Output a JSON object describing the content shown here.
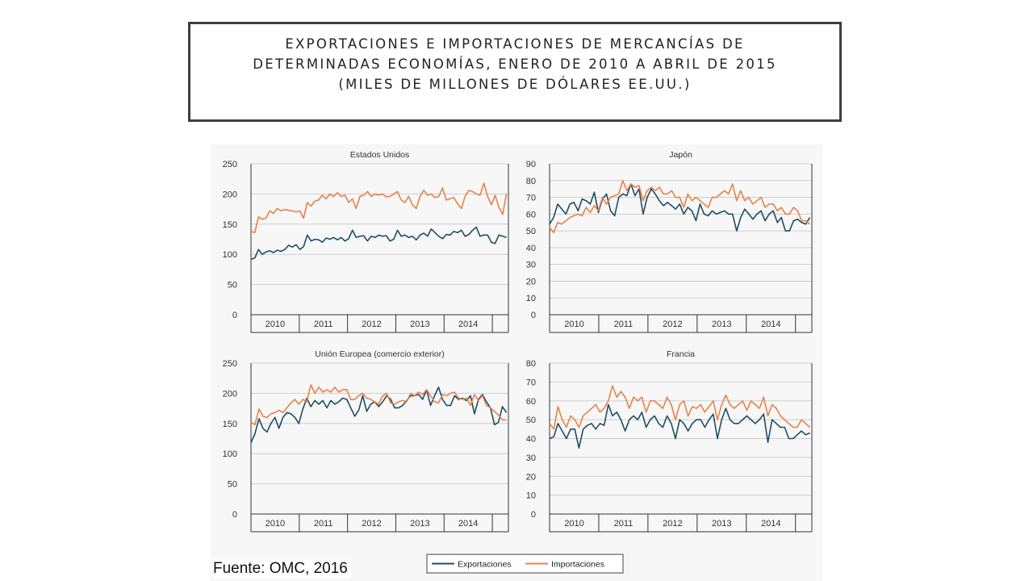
{
  "title": {
    "lines": [
      "EXPORTACIONES E IMPORTACIONES DE MERCANCÍAS DE",
      "DETERMINADAS ECONOMÍAS, ENERO DE 2010 A ABRIL DE 2015",
      "(MILES DE MILLONES DE DÓLARES EE.UU.)"
    ]
  },
  "source": "Fuente: OMC, 2016",
  "colors": {
    "exports": "#1f4e63",
    "imports": "#e8824a",
    "grid": "#cfcfcf",
    "axis": "#333333"
  },
  "legend": {
    "exports": "Exportaciones",
    "imports": "Importaciones"
  },
  "chart_data": [
    {
      "type": "line",
      "title": "Estados Unidos",
      "x_ticks": [
        "2010",
        "2011",
        "2012",
        "2013",
        "2014"
      ],
      "x_range": [
        "2010-01",
        "2015-04"
      ],
      "ylim": [
        0,
        250
      ],
      "y_ticks": [
        0,
        50,
        100,
        150,
        200,
        250
      ],
      "series": [
        {
          "name": "Exportaciones",
          "values": [
            92,
            94,
            108,
            100,
            104,
            106,
            103,
            107,
            105,
            108,
            115,
            112,
            116,
            108,
            113,
            132,
            122,
            125,
            124,
            120,
            127,
            125,
            128,
            124,
            128,
            122,
            126,
            140,
            128,
            130,
            131,
            122,
            130,
            128,
            132,
            130,
            131,
            122,
            125,
            140,
            130,
            132,
            128,
            130,
            124,
            132,
            135,
            130,
            142,
            136,
            130,
            126,
            133,
            132,
            138,
            136,
            140,
            130,
            133,
            140,
            145,
            130,
            132,
            132,
            120,
            118,
            132,
            130,
            128
          ]
        },
        {
          "name": "Importaciones",
          "values": [
            138,
            136,
            162,
            158,
            160,
            172,
            168,
            176,
            172,
            174,
            173,
            172,
            170,
            172,
            160,
            186,
            180,
            188,
            190,
            198,
            192,
            200,
            196,
            202,
            196,
            198,
            186,
            192,
            176,
            196,
            198,
            204,
            196,
            200,
            198,
            200,
            195,
            196,
            200,
            204,
            190,
            186,
            196,
            182,
            176,
            196,
            206,
            198,
            200,
            194,
            196,
            210,
            190,
            192,
            194,
            184,
            176,
            196,
            206,
            204,
            200,
            198,
            218,
            196,
            182,
            198,
            178,
            166,
            200
          ]
        }
      ]
    },
    {
      "type": "line",
      "title": "Japón",
      "x_ticks": [
        "2010",
        "2011",
        "2012",
        "2013",
        "2014"
      ],
      "x_range": [
        "2010-01",
        "2015-04"
      ],
      "ylim": [
        0,
        90
      ],
      "y_ticks": [
        0,
        10,
        20,
        30,
        40,
        50,
        60,
        70,
        80,
        90
      ],
      "series": [
        {
          "name": "Exportaciones",
          "values": [
            54,
            58,
            66,
            63,
            60,
            66,
            67,
            62,
            69,
            68,
            66,
            73,
            61,
            69,
            72,
            62,
            59,
            70,
            72,
            71,
            78,
            71,
            75,
            60,
            70,
            75,
            72,
            68,
            65,
            67,
            65,
            63,
            66,
            60,
            64,
            62,
            56,
            66,
            60,
            59,
            62,
            60,
            61,
            62,
            60,
            60,
            50,
            58,
            63,
            60,
            57,
            60,
            62,
            56,
            60,
            62,
            55,
            58,
            50,
            50,
            56,
            57,
            55,
            54,
            58
          ]
        },
        {
          "name": "Importaciones",
          "values": [
            52,
            49,
            55,
            54,
            56,
            58,
            59,
            60,
            59,
            64,
            61,
            65,
            62,
            70,
            66,
            70,
            71,
            72,
            80,
            74,
            78,
            76,
            77,
            68,
            74,
            76,
            74,
            76,
            72,
            72,
            74,
            70,
            70,
            64,
            72,
            68,
            70,
            68,
            66,
            64,
            70,
            70,
            72,
            74,
            72,
            78,
            68,
            74,
            68,
            70,
            66,
            68,
            70,
            64,
            66,
            66,
            62,
            64,
            60,
            60,
            64,
            62,
            56,
            56,
            54
          ]
        }
      ]
    },
    {
      "type": "line",
      "title": "Unión Europea (comercio exterior)",
      "x_ticks": [
        "2010",
        "2011",
        "2012",
        "2013",
        "2014"
      ],
      "x_range": [
        "2010-01",
        "2015-04"
      ],
      "ylim": [
        0,
        250
      ],
      "y_ticks": [
        0,
        50,
        100,
        150,
        200,
        250
      ],
      "series": [
        {
          "name": "Exportaciones",
          "values": [
            118,
            133,
            158,
            142,
            136,
            150,
            160,
            142,
            160,
            168,
            166,
            160,
            150,
            174,
            192,
            178,
            188,
            182,
            188,
            176,
            188,
            182,
            186,
            192,
            190,
            176,
            162,
            172,
            196,
            170,
            182,
            186,
            178,
            186,
            196,
            190,
            176,
            176,
            180,
            188,
            196,
            196,
            198,
            190,
            206,
            180,
            196,
            210,
            190,
            180,
            180,
            196,
            190,
            192,
            188,
            196,
            166,
            190,
            198,
            186,
            176,
            148,
            152,
            178,
            168
          ]
        },
        {
          "name": "Importaciones",
          "values": [
            152,
            148,
            174,
            162,
            160,
            166,
            168,
            172,
            168,
            176,
            184,
            190,
            182,
            190,
            186,
            214,
            200,
            210,
            202,
            206,
            202,
            210,
            202,
            206,
            206,
            190,
            190,
            196,
            200,
            192,
            190,
            186,
            182,
            196,
            200,
            184,
            182,
            186,
            188,
            186,
            200,
            196,
            202,
            198,
            206,
            196,
            186,
            184,
            198,
            196,
            200,
            202,
            192,
            190,
            192,
            180,
            198,
            188,
            196,
            180,
            176,
            170,
            164,
            156,
            156
          ]
        }
      ]
    },
    {
      "type": "line",
      "title": "Francia",
      "x_ticks": [
        "2010",
        "2011",
        "2012",
        "2013",
        "2014"
      ],
      "x_range": [
        "2010-01",
        "2015-04"
      ],
      "ylim": [
        0,
        80
      ],
      "y_ticks": [
        0,
        10,
        20,
        30,
        40,
        50,
        60,
        70,
        80
      ],
      "series": [
        {
          "name": "Exportaciones",
          "values": [
            40,
            41,
            48,
            44,
            40,
            45,
            45,
            35,
            45,
            47,
            48,
            45,
            48,
            47,
            58,
            52,
            54,
            50,
            44,
            50,
            52,
            50,
            54,
            46,
            50,
            52,
            48,
            46,
            52,
            48,
            40,
            50,
            48,
            44,
            48,
            50,
            50,
            46,
            50,
            53,
            40,
            50,
            56,
            50,
            48,
            48,
            50,
            52,
            50,
            48,
            50,
            53,
            38,
            50,
            48,
            46,
            46,
            40,
            40,
            42,
            44,
            42,
            43
          ]
        },
        {
          "name": "Importaciones",
          "values": [
            48,
            45,
            57,
            50,
            46,
            52,
            50,
            46,
            52,
            54,
            56,
            58,
            54,
            56,
            60,
            68,
            62,
            65,
            62,
            56,
            62,
            60,
            62,
            54,
            60,
            60,
            58,
            56,
            62,
            58,
            50,
            58,
            60,
            52,
            57,
            56,
            58,
            54,
            57,
            60,
            50,
            58,
            63,
            58,
            56,
            58,
            60,
            55,
            60,
            58,
            56,
            62,
            52,
            58,
            56,
            52,
            50,
            48,
            46,
            46,
            50,
            48,
            46
          ]
        }
      ]
    }
  ]
}
